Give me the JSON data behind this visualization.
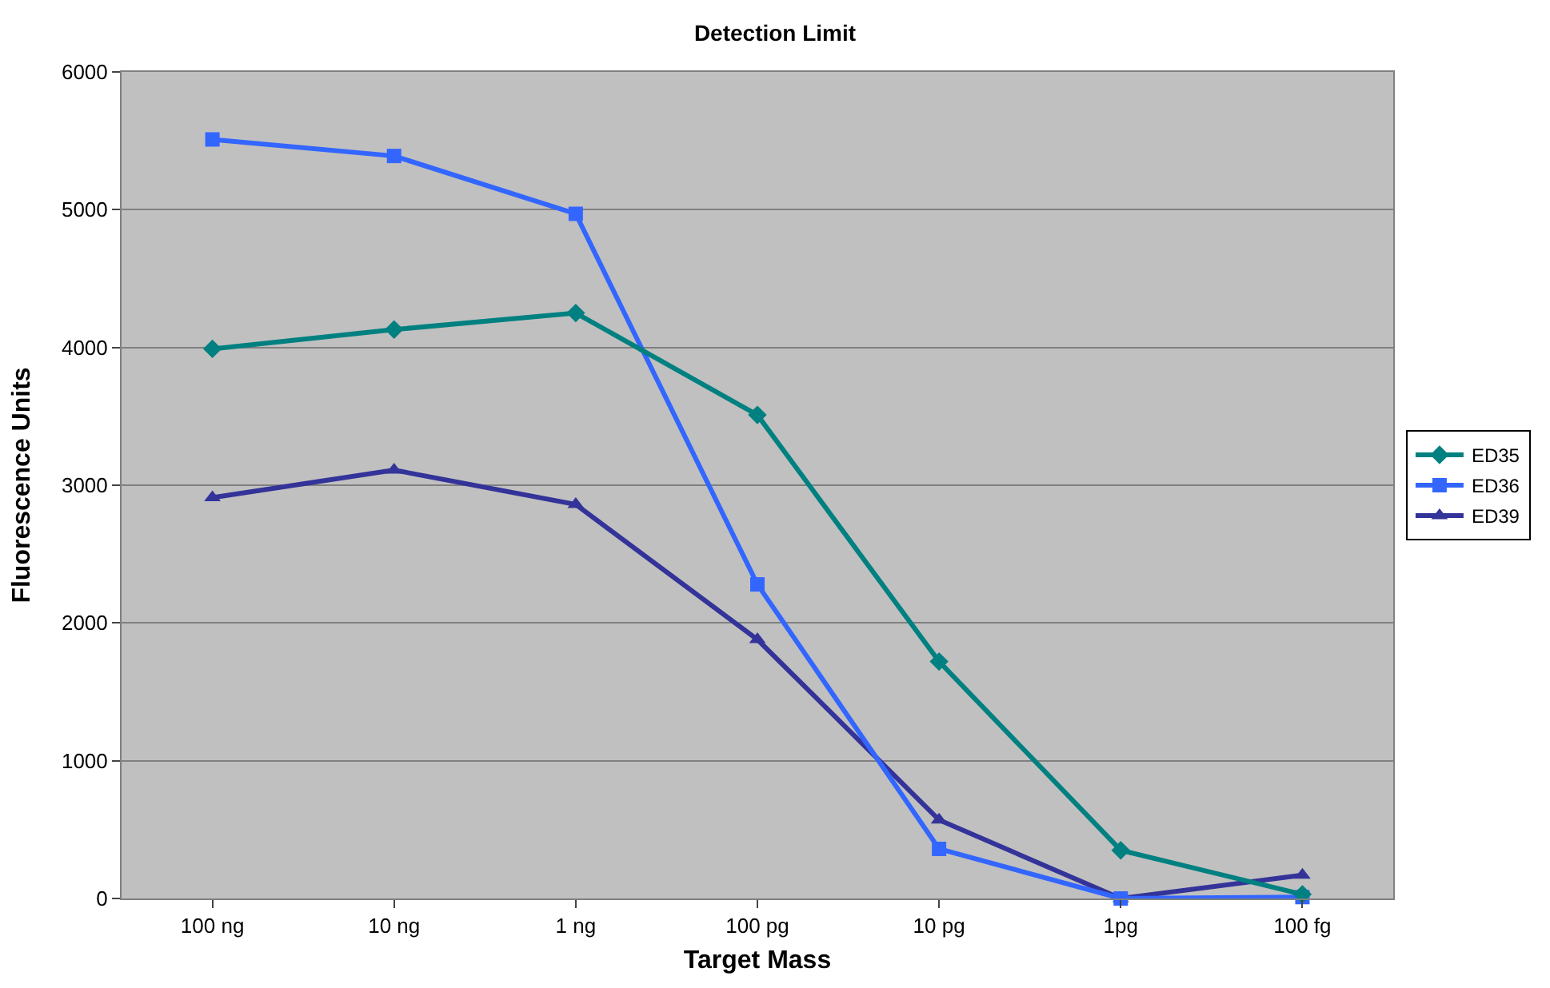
{
  "chart_data": {
    "type": "line",
    "title": "Detection Limit",
    "xlabel": "Target Mass",
    "ylabel": "Fluorescence Units",
    "categories": [
      "100 ng",
      "10 ng",
      "1 ng",
      "100 pg",
      "10 pg",
      "1pg",
      "100 fg"
    ],
    "series": [
      {
        "name": "ED35",
        "color": "#008080",
        "marker": "diamond",
        "values": [
          3990,
          4130,
          4250,
          3510,
          1720,
          350,
          30
        ]
      },
      {
        "name": "ED36",
        "color": "#3366ff",
        "marker": "square",
        "values": [
          5510,
          5390,
          4970,
          2280,
          360,
          0,
          10
        ]
      },
      {
        "name": "ED39",
        "color": "#333399",
        "marker": "triangle",
        "values": [
          2910,
          3110,
          2860,
          1880,
          570,
          0,
          170
        ]
      }
    ],
    "ylim": [
      0,
      6000
    ],
    "yticks": [
      0,
      1000,
      2000,
      3000,
      4000,
      5000,
      6000
    ],
    "grid": "y",
    "legend": "right",
    "line_style": "solid"
  }
}
